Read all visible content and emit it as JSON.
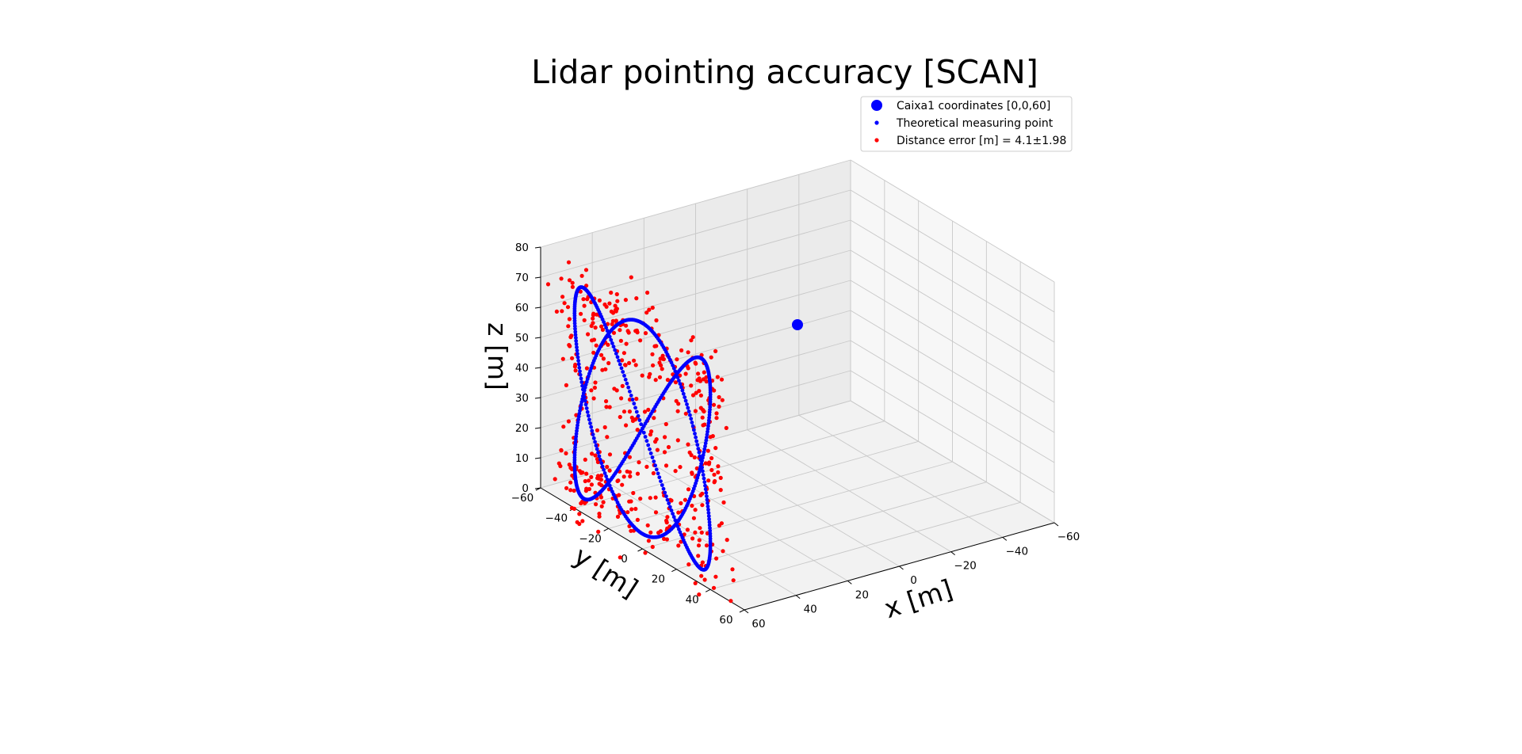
{
  "chart_data": {
    "type": "scatter",
    "title": "Lidar pointing accuracy [SCAN]",
    "xlabel": "x [m]",
    "ylabel": "y [m]",
    "zlabel": "z [m]",
    "xlim": [
      -60,
      60
    ],
    "ylim": [
      -60,
      60
    ],
    "zlim": [
      0,
      80
    ],
    "x_ticks": [
      -60,
      -40,
      -20,
      0,
      20,
      40,
      60
    ],
    "y_ticks": [
      -60,
      -40,
      -20,
      0,
      20,
      40,
      60
    ],
    "z_ticks": [
      0,
      10,
      20,
      30,
      40,
      50,
      60,
      70,
      80
    ],
    "x_tick_labels": [
      "−60",
      "−40",
      "−20",
      "0",
      "20",
      "40",
      "60"
    ],
    "y_tick_labels": [
      "−60",
      "−40",
      "−20",
      "0",
      "20",
      "40",
      "60"
    ],
    "z_tick_labels": [
      "0",
      "10",
      "20",
      "30",
      "40",
      "50",
      "60",
      "70",
      "80"
    ],
    "grid": true,
    "legend_position": "top-right",
    "series": [
      {
        "name": "Caixa1 coordinates [0,0,60]",
        "kind": "target",
        "color": "#0000ff",
        "points": [
          [
            0,
            0,
            60
          ]
        ]
      },
      {
        "name": "Theoretical measuring point",
        "kind": "lissajous",
        "color": "#0000ff",
        "x": 60,
        "y_amplitude": 40,
        "z_center": 40,
        "z_amplitude": 35,
        "y_frequency": 2,
        "z_frequency": 3,
        "count": 600
      },
      {
        "name": "Distance error [m] = 4.1±1.98",
        "kind": "measured",
        "color": "#ff0000",
        "mean_error": 4.1,
        "std_error": 1.98,
        "count": 480
      }
    ]
  }
}
